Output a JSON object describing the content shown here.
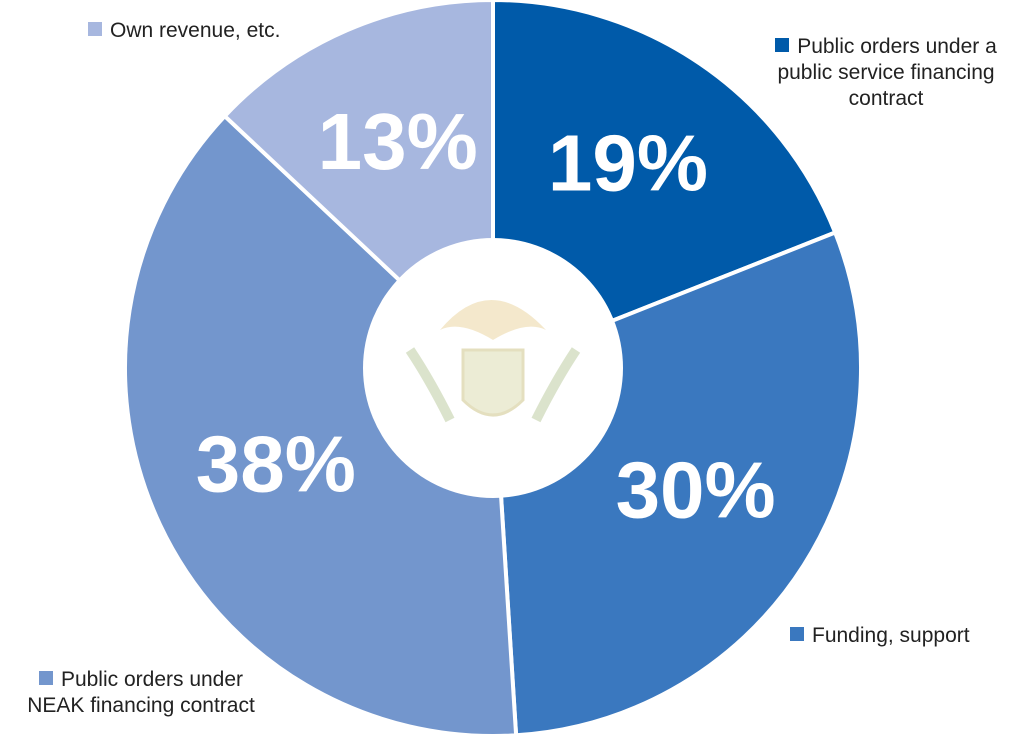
{
  "chart_data": {
    "type": "donut",
    "categories": [
      "Public orders under a public service financing contract",
      "Funding, support",
      "Public orders under NEAK financing contract",
      "Own revenue, etc."
    ],
    "values": [
      19,
      30,
      38,
      13
    ],
    "value_labels": [
      "19%",
      "30%",
      "38%",
      "13%"
    ],
    "colors": [
      "#005aa9",
      "#3a78bf",
      "#7396cd",
      "#a7b7df"
    ]
  }
}
